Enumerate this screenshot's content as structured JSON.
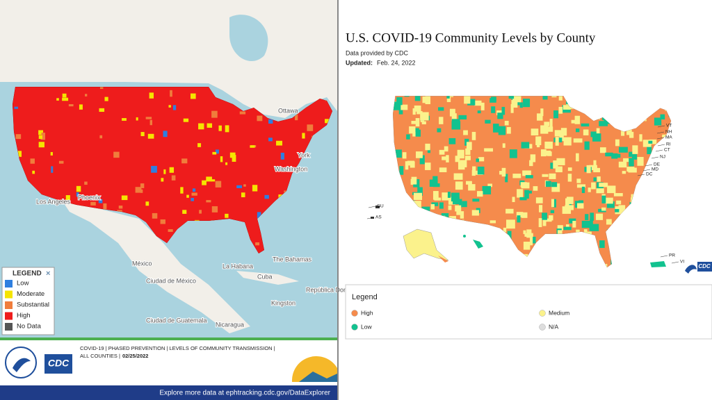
{
  "left_map": {
    "place_labels": [
      "Ottawa",
      "York",
      "Washington",
      "Los Angeles",
      "Phoenix",
      "México",
      "Ciudad de México",
      "La Habana",
      "The Bahamas",
      "Cuba",
      "República Dominicana",
      "Kingston",
      "Ciudad de Guatemala",
      "Nicaragua"
    ],
    "legend": {
      "title": "LEGEND",
      "close": "×",
      "items": [
        {
          "label": "Low",
          "color": "#2f7fe0"
        },
        {
          "label": "Moderate",
          "color": "#f5e400"
        },
        {
          "label": "Substantial",
          "color": "#f07d3c"
        },
        {
          "label": "High",
          "color": "#ee1c1c"
        },
        {
          "label": "No Data",
          "color": "#555555"
        }
      ]
    },
    "footer": {
      "line1": "COVID-19 | PHASED PREVENTION | LEVELS OF COMMUNITY TRANSMISSION |",
      "line2": "ALL COUNTIES |",
      "date": "02/25/2022",
      "logo": "CDC",
      "link": "Explore more data at ephtracking.cdc.gov/DataExplorer"
    }
  },
  "right_map": {
    "title": "U.S. COVID-19 Community Levels by County",
    "source": "Data provided by CDC",
    "updated_label": "Updated:",
    "updated_date": "Feb. 24, 2022",
    "state_labels": [
      "VT",
      "NH",
      "MA",
      "RI",
      "CT",
      "NJ",
      "DE",
      "MD",
      "DC",
      "GU",
      "AS",
      "PR",
      "VI"
    ],
    "logo": "CDC",
    "legend": {
      "title": "Legend",
      "items": [
        {
          "label": "High",
          "color": "#f58b4c"
        },
        {
          "label": "Medium",
          "color": "#fbf28c"
        },
        {
          "label": "Low",
          "color": "#12c28f"
        },
        {
          "label": "N/A",
          "color": "#dddddd"
        }
      ]
    }
  }
}
